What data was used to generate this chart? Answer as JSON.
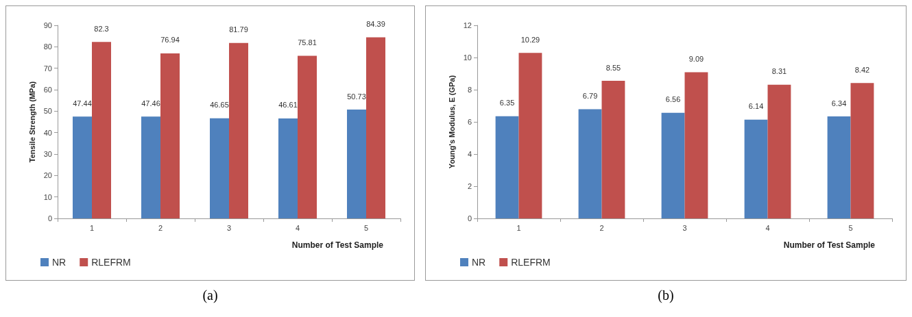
{
  "chart_data": [
    {
      "type": "bar",
      "ylabel": "Tensile Strength (MPa)",
      "xlabel": "Number of Test Sample",
      "categories": [
        "1",
        "2",
        "3",
        "4",
        "5"
      ],
      "ylim": [
        0,
        90
      ],
      "yticks": [
        0,
        10,
        20,
        30,
        40,
        50,
        60,
        70,
        80,
        90
      ],
      "grid": false,
      "legend": "bottom left",
      "data_labels": true,
      "annotations": [
        "(a)"
      ],
      "series": [
        {
          "name": "NR",
          "color": "#4f81bd",
          "values": [
            47.44,
            47.46,
            46.65,
            46.61,
            50.73
          ]
        },
        {
          "name": "RLEFRM",
          "color": "#c0504d",
          "values": [
            82.3,
            76.94,
            81.79,
            75.81,
            84.39
          ]
        }
      ]
    },
    {
      "type": "bar",
      "ylabel": "Young's Modulus, E (GPa)",
      "xlabel": "Number of Test Sample",
      "categories": [
        "1",
        "2",
        "3",
        "4",
        "5"
      ],
      "ylim": [
        0,
        12
      ],
      "yticks": [
        0,
        2,
        4,
        6,
        8,
        10,
        12
      ],
      "grid": false,
      "legend": "bottom left",
      "data_labels": true,
      "annotations": [
        "(b)"
      ],
      "series": [
        {
          "name": "NR",
          "color": "#4f81bd",
          "values": [
            6.35,
            6.79,
            6.56,
            6.14,
            6.34
          ]
        },
        {
          "name": "RLEFRM",
          "color": "#c0504d",
          "values": [
            10.29,
            8.55,
            9.09,
            8.31,
            8.42
          ]
        }
      ]
    }
  ]
}
